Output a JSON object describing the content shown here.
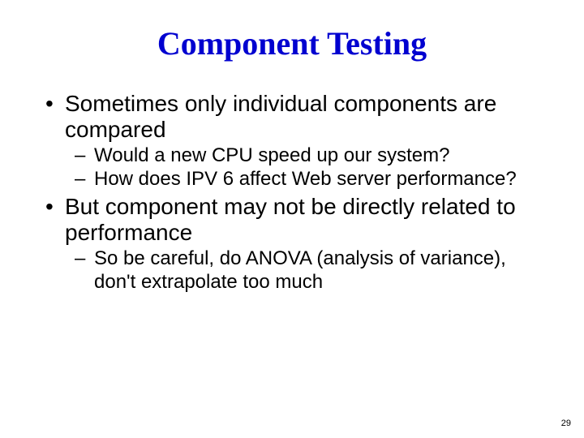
{
  "title": "Component Testing",
  "title_color": "#0000d0",
  "title_font": "Comic Sans MS",
  "title_fontsize": 40,
  "body_color": "#000000",
  "body_font": "Arial",
  "level1_fontsize": 28,
  "level2_fontsize": 24,
  "background_color": "#ffffff",
  "bullets": {
    "b1": "Sometimes only individual components are compared",
    "b1_sub1": "Would a new CPU speed up our system?",
    "b1_sub2": "How does IPV 6 affect Web server performance?",
    "b2": "But component may not be directly related to performance",
    "b2_sub1": "So be careful, do ANOVA (analysis of variance), don't extrapolate too much"
  },
  "page_number": "29"
}
